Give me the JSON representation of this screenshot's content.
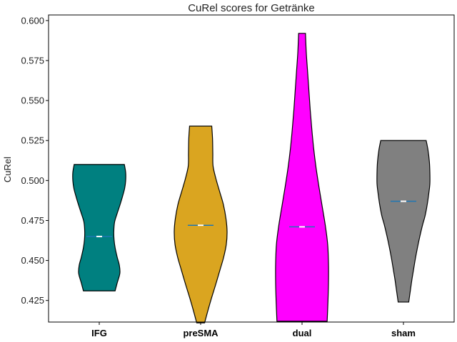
{
  "chart_data": {
    "type": "violin",
    "title": "CuRel scores for Getränke",
    "xlabel": "",
    "ylabel": "CuRel",
    "categories": [
      "IFG",
      "preSMA",
      "dual",
      "sham"
    ],
    "ylim": [
      0.4115,
      0.6035
    ],
    "yticks": [
      0.425,
      0.45,
      0.475,
      0.5,
      0.525,
      0.55,
      0.575,
      0.6
    ],
    "ytick_labels": [
      "0.425",
      "0.450",
      "0.475",
      "0.500",
      "0.525",
      "0.550",
      "0.575",
      "0.600"
    ],
    "grid": false,
    "series": [
      {
        "category": "IFG",
        "color": "#008080",
        "min": 0.431,
        "max": 0.51,
        "median": 0.465,
        "profile": [
          [
            0.431,
            0.6
          ],
          [
            0.436,
            0.68
          ],
          [
            0.442,
            0.78
          ],
          [
            0.447,
            0.76
          ],
          [
            0.452,
            0.68
          ],
          [
            0.458,
            0.6
          ],
          [
            0.463,
            0.56
          ],
          [
            0.468,
            0.55
          ],
          [
            0.474,
            0.58
          ],
          [
            0.479,
            0.67
          ],
          [
            0.484,
            0.77
          ],
          [
            0.49,
            0.88
          ],
          [
            0.495,
            0.96
          ],
          [
            0.5,
            1.0
          ],
          [
            0.505,
            1.0
          ],
          [
            0.51,
            0.95
          ]
        ]
      },
      {
        "category": "preSMA",
        "color": "#DAA520",
        "min": 0.411,
        "max": 0.534,
        "median": 0.472,
        "profile": [
          [
            0.411,
            0.15
          ],
          [
            0.419,
            0.28
          ],
          [
            0.427,
            0.42
          ],
          [
            0.435,
            0.57
          ],
          [
            0.444,
            0.73
          ],
          [
            0.452,
            0.87
          ],
          [
            0.46,
            0.97
          ],
          [
            0.468,
            1.0
          ],
          [
            0.476,
            0.96
          ],
          [
            0.485,
            0.86
          ],
          [
            0.493,
            0.72
          ],
          [
            0.501,
            0.58
          ],
          [
            0.509,
            0.47
          ],
          [
            0.517,
            0.46
          ],
          [
            0.526,
            0.45
          ],
          [
            0.534,
            0.42
          ]
        ]
      },
      {
        "category": "dual",
        "color": "#FF00FF",
        "min": 0.412,
        "max": 0.592,
        "median": 0.471,
        "profile": [
          [
            0.412,
            0.95
          ],
          [
            0.424,
            0.98
          ],
          [
            0.436,
            1.0
          ],
          [
            0.448,
            1.0
          ],
          [
            0.46,
            0.97
          ],
          [
            0.472,
            0.88
          ],
          [
            0.484,
            0.76
          ],
          [
            0.496,
            0.64
          ],
          [
            0.508,
            0.53
          ],
          [
            0.52,
            0.44
          ],
          [
            0.532,
            0.37
          ],
          [
            0.544,
            0.31
          ],
          [
            0.556,
            0.26
          ],
          [
            0.568,
            0.21
          ],
          [
            0.58,
            0.16
          ],
          [
            0.592,
            0.13
          ]
        ]
      },
      {
        "category": "sham",
        "color": "#808080",
        "min": 0.424,
        "max": 0.525,
        "median": 0.487,
        "profile": [
          [
            0.424,
            0.2
          ],
          [
            0.431,
            0.26
          ],
          [
            0.438,
            0.32
          ],
          [
            0.444,
            0.38
          ],
          [
            0.451,
            0.45
          ],
          [
            0.458,
            0.53
          ],
          [
            0.465,
            0.62
          ],
          [
            0.472,
            0.72
          ],
          [
            0.478,
            0.82
          ],
          [
            0.485,
            0.9
          ],
          [
            0.492,
            0.96
          ],
          [
            0.498,
            1.0
          ],
          [
            0.505,
            1.0
          ],
          [
            0.512,
            0.98
          ],
          [
            0.519,
            0.93
          ],
          [
            0.525,
            0.86
          ]
        ]
      }
    ]
  }
}
